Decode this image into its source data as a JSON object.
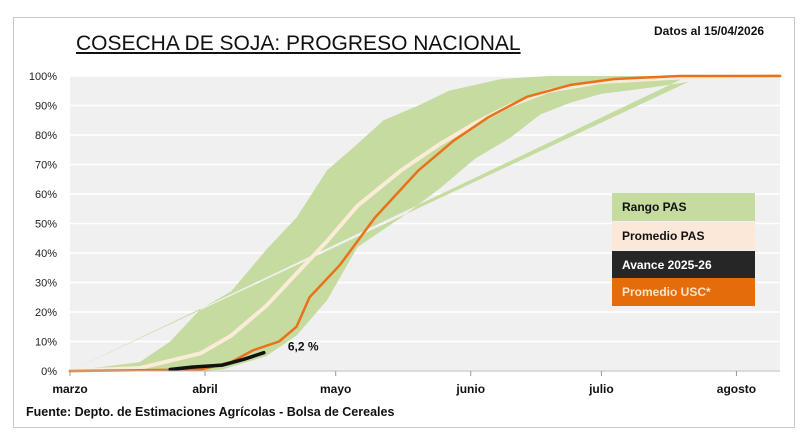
{
  "header": {
    "title": "COSECHA DE SOJA: PROGRESO NACIONAL",
    "date": "Datos al 15/04/2026"
  },
  "footer": {
    "source": "Fuente: Depto. de Estimaciones Agrícolas - Bolsa de Cereales"
  },
  "logo": {
    "text": "Bolsa de Cereales"
  },
  "colors": {
    "range": "#c5dba0",
    "avg": "#fbecd8",
    "current": "#111111",
    "usc": "#e8721c",
    "plot_bg": "#f0f0f0"
  },
  "chart_data": {
    "type": "area",
    "title": "COSECHA DE SOJA: PROGRESO NACIONAL",
    "x_unit": "days since March 1",
    "xlim": [
      0,
      163
    ],
    "ylim": [
      0,
      100
    ],
    "yticks": [
      0,
      10,
      20,
      30,
      40,
      50,
      60,
      70,
      80,
      90,
      100
    ],
    "ytick_labels": [
      "0%",
      "10%",
      "20%",
      "30%",
      "40%",
      "50%",
      "60%",
      "70%",
      "80%",
      "90%",
      "100%"
    ],
    "xticks": [
      0,
      31,
      61,
      92,
      122,
      153
    ],
    "xtick_labels": [
      "marzo",
      "abril",
      "mayo",
      "junio",
      "julio",
      "agosto"
    ],
    "legend": [
      "Rango PAS",
      "Promedio PAS",
      "Avance 2025-26",
      "Promedio  USC*"
    ],
    "legend_position": "right",
    "range_upper": {
      "x": [
        0,
        16,
        23,
        30,
        37,
        45,
        52,
        59,
        66,
        72,
        80,
        87,
        99,
        110,
        142
      ],
      "y": [
        0,
        3,
        10,
        21,
        27,
        41,
        52,
        68,
        77,
        85,
        90,
        95,
        99,
        100,
        100
      ]
    },
    "range_lower": {
      "x": [
        0,
        30,
        35,
        45,
        52,
        59,
        66,
        76,
        85,
        93,
        101,
        108,
        115,
        122,
        133,
        142
      ],
      "y": [
        0,
        0,
        0.5,
        5,
        12,
        24,
        42,
        52,
        62,
        72,
        79,
        87,
        91,
        94,
        96,
        98
      ]
    },
    "series": [
      {
        "name": "Promedio PAS",
        "x": [
          0,
          16,
          30,
          37,
          45,
          52,
          59,
          66,
          76,
          85,
          93,
          101,
          110,
          122,
          140,
          163
        ],
        "y": [
          0,
          1,
          6,
          12,
          22,
          33,
          44,
          56,
          68,
          77,
          84,
          90,
          95,
          98,
          99.5,
          100
        ]
      },
      {
        "name": "Promedio  USC*",
        "x": [
          0,
          30,
          37,
          42,
          48,
          52,
          55,
          62,
          70,
          80,
          88,
          96,
          105,
          115,
          125,
          140,
          163
        ],
        "y": [
          0,
          0.5,
          3,
          7,
          10,
          15,
          25,
          36,
          52,
          68,
          78,
          86,
          93,
          97,
          99,
          100,
          100
        ]
      },
      {
        "name": "Avance 2025-26",
        "x": [
          23,
          28,
          35,
          40,
          44.5
        ],
        "y": [
          0.5,
          1.3,
          2,
          4,
          6.2
        ]
      }
    ],
    "annotation": "6,2 %"
  }
}
